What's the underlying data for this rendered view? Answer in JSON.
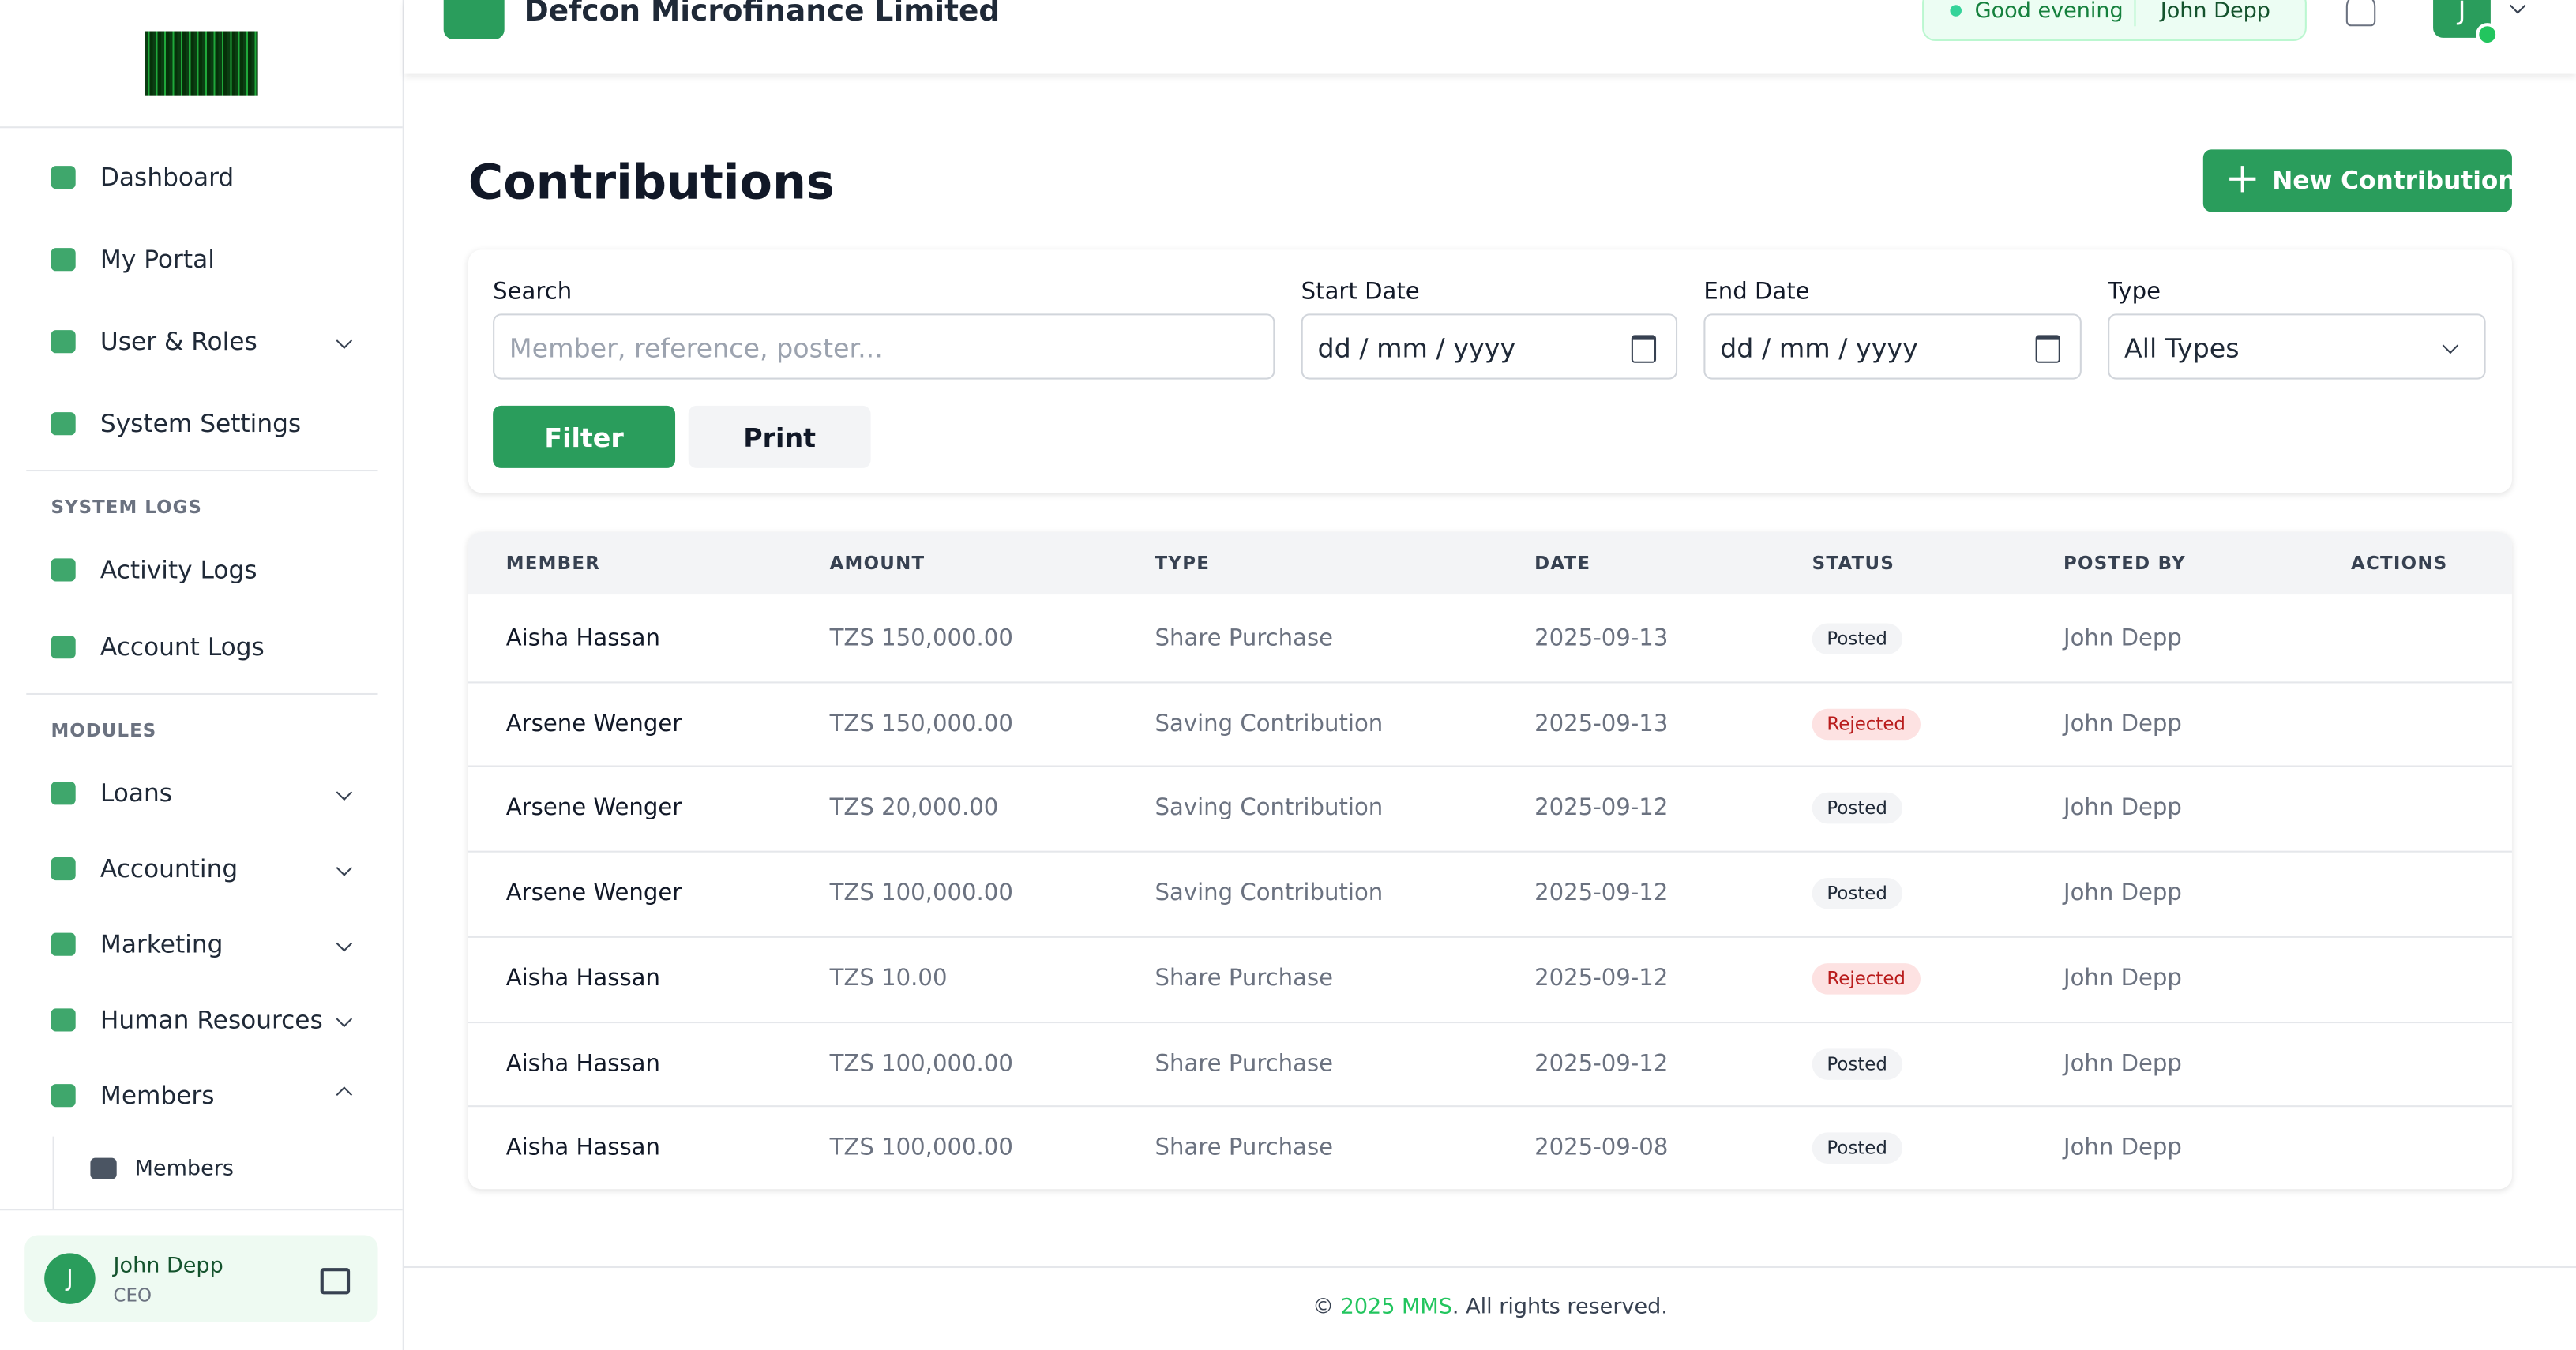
{
  "header": {
    "company": "Defcon Microfinance Limited",
    "greeting": "Good evening",
    "user": "John Depp",
    "avatar": "J"
  },
  "sidebar": {
    "main": [
      "Dashboard",
      "My Portal",
      "User & Roles",
      "System Settings"
    ],
    "logs_heading": "SYSTEM LOGS",
    "logs": [
      "Activity Logs",
      "Account Logs"
    ],
    "modules_heading": "MODULES",
    "modules": [
      "Loans",
      "Accounting",
      "Marketing",
      "Human Resources",
      "Members"
    ],
    "sub": [
      "Members"
    ],
    "user": {
      "initial": "J",
      "name": "John Depp",
      "role": "CEO"
    }
  },
  "page": {
    "title": "Contributions",
    "new_button": "New Contribution"
  },
  "filters": {
    "search_label": "Search",
    "search_placeholder": "Member, reference, poster...",
    "start_label": "Start Date",
    "start_placeholder": "dd / mm / yyyy",
    "end_label": "End Date",
    "end_placeholder": "dd / mm / yyyy",
    "type_label": "Type",
    "type_value": "All Types",
    "filter_button": "Filter",
    "print_button": "Print"
  },
  "table": {
    "columns": [
      "MEMBER",
      "AMOUNT",
      "TYPE",
      "DATE",
      "STATUS",
      "POSTED BY",
      "ACTIONS"
    ],
    "rows": [
      [
        "Aisha Hassan",
        "TZS 150,000.00",
        "Share Purchase",
        "2025-09-13",
        "Posted",
        "John Depp"
      ],
      [
        "Arsene Wenger",
        "TZS 150,000.00",
        "Saving Contribution",
        "2025-09-13",
        "Rejected",
        "John Depp"
      ],
      [
        "Arsene Wenger",
        "TZS 20,000.00",
        "Saving Contribution",
        "2025-09-12",
        "Posted",
        "John Depp"
      ],
      [
        "Arsene Wenger",
        "TZS 100,000.00",
        "Saving Contribution",
        "2025-09-12",
        "Posted",
        "John Depp"
      ],
      [
        "Aisha Hassan",
        "TZS 10.00",
        "Share Purchase",
        "2025-09-12",
        "Rejected",
        "John Depp"
      ],
      [
        "Aisha Hassan",
        "TZS 100,000.00",
        "Share Purchase",
        "2025-09-12",
        "Posted",
        "John Depp"
      ],
      [
        "Aisha Hassan",
        "TZS 100,000.00",
        "Share Purchase",
        "2025-09-08",
        "Posted",
        "John Depp"
      ]
    ]
  },
  "footer": {
    "prefix": "©",
    "link": "2025 MMS",
    "suffix": ". All rights reserved."
  }
}
